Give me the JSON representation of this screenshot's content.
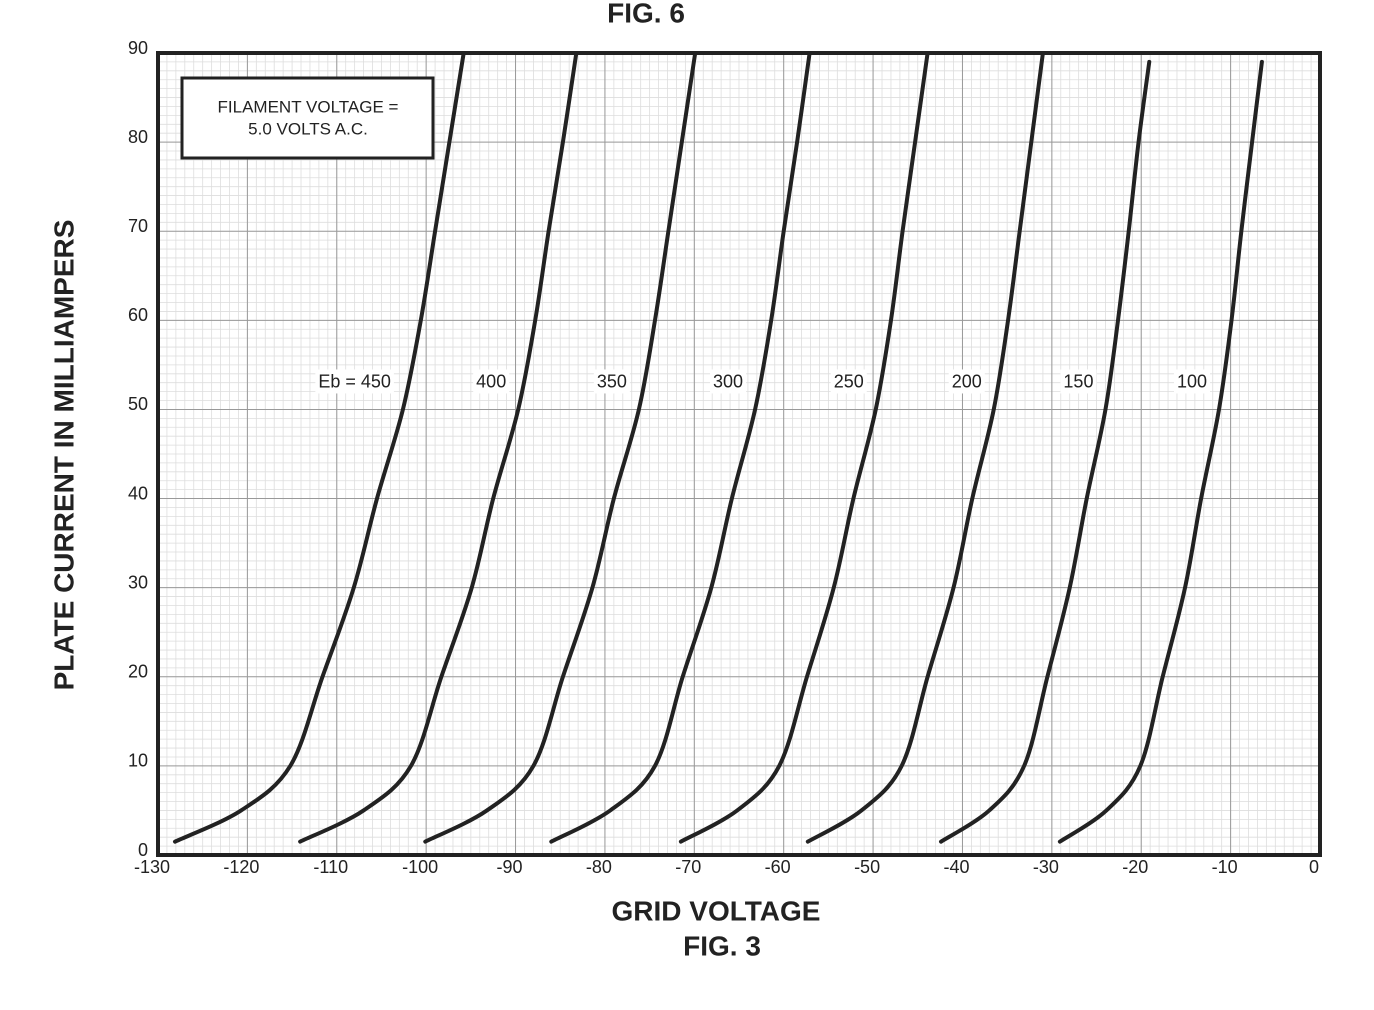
{
  "chart_data": {
    "type": "line",
    "title": "FIG. 6",
    "caption": "FIG. 3",
    "xlabel": "GRID VOLTAGE",
    "ylabel": "PLATE CURRENT IN MILLIAMPERS",
    "annotation": [
      "FILAMENT VOLTAGE =",
      "5.0 VOLTS A.C."
    ],
    "xlim": [
      -130,
      0
    ],
    "ylim": [
      0,
      90
    ],
    "xticks": [
      -130,
      -120,
      -110,
      -100,
      -90,
      -80,
      -70,
      -60,
      -50,
      -40,
      -30,
      -20,
      -10,
      0
    ],
    "yticks": [
      0,
      10,
      20,
      30,
      40,
      50,
      60,
      70,
      80,
      90
    ],
    "grid": true,
    "minor_grid_step": 1,
    "color": "#222222",
    "series": [
      {
        "name": "Eb = 450",
        "x": [
          -128.1,
          -120.7,
          -115.2,
          -111.6,
          -108.1,
          -105.5,
          -102.6,
          -100.6,
          -99.0,
          -97.4,
          -95.8
        ],
        "values": [
          1.5,
          5,
          10,
          20,
          30,
          40,
          50,
          60,
          70,
          80,
          90
        ]
      },
      {
        "name": "400",
        "x": [
          -114.1,
          -107.0,
          -101.7,
          -98.3,
          -94.9,
          -92.5,
          -89.7,
          -87.8,
          -86.3,
          -84.7,
          -83.2
        ],
        "values": [
          1.5,
          5,
          10,
          20,
          30,
          40,
          50,
          60,
          70,
          80,
          90
        ]
      },
      {
        "name": "350",
        "x": [
          -100.1,
          -93.2,
          -88.0,
          -84.7,
          -81.4,
          -79.0,
          -76.2,
          -74.4,
          -72.9,
          -71.4,
          -69.9
        ],
        "values": [
          1.5,
          5,
          10,
          20,
          30,
          40,
          50,
          60,
          70,
          80,
          90
        ]
      },
      {
        "name": "300",
        "x": [
          -86.0,
          -79.4,
          -74.4,
          -71.3,
          -68.1,
          -65.8,
          -63.2,
          -61.4,
          -60.0,
          -58.5,
          -57.1
        ],
        "values": [
          1.5,
          5,
          10,
          20,
          30,
          40,
          50,
          60,
          70,
          80,
          90
        ]
      },
      {
        "name": "250",
        "x": [
          -71.5,
          -65.2,
          -60.5,
          -57.4,
          -54.4,
          -52.2,
          -49.7,
          -48.0,
          -46.7,
          -45.3,
          -43.9
        ],
        "values": [
          1.5,
          5,
          10,
          20,
          30,
          40,
          50,
          60,
          70,
          80,
          90
        ]
      },
      {
        "name": "200",
        "x": [
          -57.3,
          -51.3,
          -46.8,
          -43.9,
          -41.0,
          -38.9,
          -36.5,
          -34.9,
          -33.6,
          -32.3,
          -31.0
        ],
        "values": [
          1.5,
          5,
          10,
          20,
          30,
          40,
          50,
          60,
          70,
          80,
          90
        ]
      },
      {
        "name": "150",
        "x": [
          -42.4,
          -37.0,
          -33.1,
          -30.5,
          -28.0,
          -26.1,
          -24.0,
          -22.6,
          -21.4,
          -20.3,
          -19.1
        ],
        "values": [
          1.5,
          5,
          10,
          20,
          30,
          40,
          50,
          60,
          70,
          80,
          89
        ]
      },
      {
        "name": "100",
        "x": [
          -29.1,
          -23.9,
          -20.1,
          -17.6,
          -15.1,
          -13.3,
          -11.3,
          -9.9,
          -8.8,
          -7.6,
          -6.5
        ],
        "values": [
          1.5,
          5,
          10,
          20,
          30,
          40,
          50,
          60,
          70,
          80,
          89
        ]
      }
    ]
  }
}
